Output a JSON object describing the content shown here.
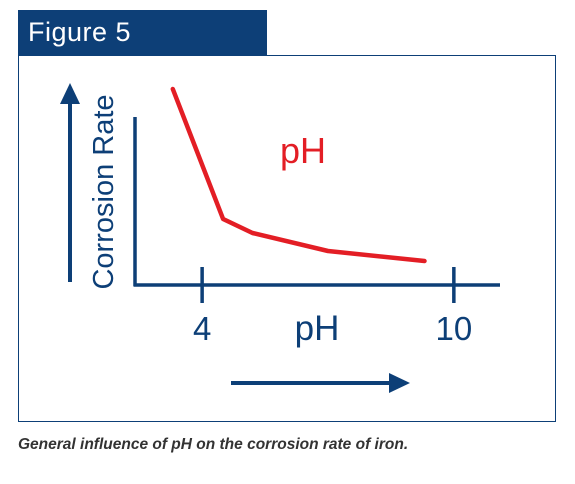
{
  "figure": {
    "label": "Figure 5",
    "caption": "General influence of pH on the corrosion rate of iron."
  },
  "colors": {
    "navy": "#0d3f77",
    "curve": "#e31e25"
  },
  "chart_data": {
    "type": "line",
    "xlabel": "pH",
    "ylabel": "Corrosion Rate",
    "annotation": "pH",
    "xlim": [
      2.4,
      11.1
    ],
    "ylim": [
      0,
      10
    ],
    "x_ticks": [
      4,
      10
    ],
    "x_tick_labels": [
      "4",
      "10"
    ],
    "grid": false,
    "legend": "none",
    "series": [
      {
        "x": [
          3.3,
          4.5,
          5.2,
          7,
          9.3
        ],
        "y": [
          9.8,
          3.3,
          2.6,
          1.7,
          1.2
        ]
      }
    ]
  }
}
